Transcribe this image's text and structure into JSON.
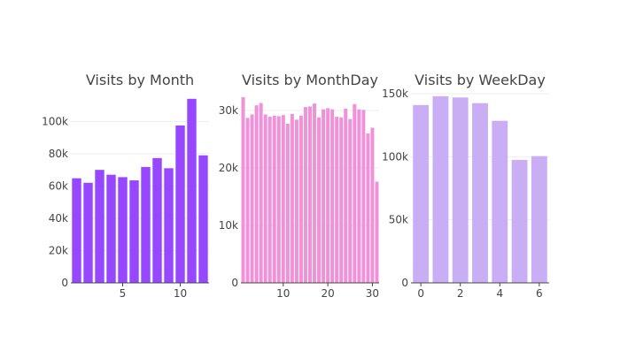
{
  "chart_data": [
    {
      "type": "bar",
      "title": "Visits by Month",
      "color": "#9747FF",
      "x": [
        1,
        2,
        3,
        4,
        5,
        6,
        7,
        8,
        9,
        10,
        11,
        12
      ],
      "values": [
        64800,
        62000,
        70000,
        67000,
        65500,
        63500,
        71800,
        77300,
        71000,
        97500,
        114000,
        79000
      ],
      "xlim": [
        0.5,
        12.5
      ],
      "ylim": [
        0,
        115000
      ],
      "xticks": [
        5,
        10
      ],
      "xtick_labels": [
        "5",
        "10"
      ],
      "yticks": [
        0,
        20000,
        40000,
        60000,
        80000,
        100000
      ],
      "ytick_labels": [
        "0",
        "20k",
        "40k",
        "60k",
        "80k",
        "100k"
      ],
      "grid": true
    },
    {
      "type": "bar",
      "title": "Visits by MonthDay",
      "color": "#F092D8",
      "x": [
        1,
        2,
        3,
        4,
        5,
        6,
        7,
        8,
        9,
        10,
        11,
        12,
        13,
        14,
        15,
        16,
        17,
        18,
        19,
        20,
        21,
        22,
        23,
        24,
        25,
        26,
        27,
        28,
        29,
        30,
        31
      ],
      "values": [
        32300,
        28700,
        29300,
        30900,
        31300,
        29300,
        28900,
        29100,
        29000,
        29200,
        27700,
        29400,
        28400,
        29100,
        30600,
        30700,
        31200,
        28800,
        30200,
        30400,
        30200,
        28900,
        28800,
        30300,
        28500,
        31100,
        30200,
        30100,
        26000,
        27000,
        17600
      ],
      "xlim": [
        0.5,
        31.5
      ],
      "ylim": [
        0,
        32300
      ],
      "xticks": [
        10,
        20,
        30
      ],
      "xtick_labels": [
        "10",
        "20",
        "30"
      ],
      "yticks": [
        0,
        10000,
        20000,
        30000
      ],
      "ytick_labels": [
        "0",
        "10k",
        "20k",
        "30k"
      ],
      "grid": true
    },
    {
      "type": "bar",
      "title": "Visits by WeekDay",
      "color": "#C9AEF5",
      "x": [
        0,
        1,
        2,
        3,
        4,
        5,
        6
      ],
      "values": [
        141000,
        148000,
        147000,
        142500,
        128500,
        97500,
        100500
      ],
      "xlim": [
        -0.5,
        6.5
      ],
      "ylim": [
        0,
        150000
      ],
      "xticks": [
        0,
        2,
        4,
        6
      ],
      "xtick_labels": [
        "0",
        "2",
        "4",
        "6"
      ],
      "yticks": [
        0,
        50000,
        100000,
        150000
      ],
      "ytick_labels": [
        "0",
        "50k",
        "100k",
        "150k"
      ],
      "grid": true
    }
  ]
}
